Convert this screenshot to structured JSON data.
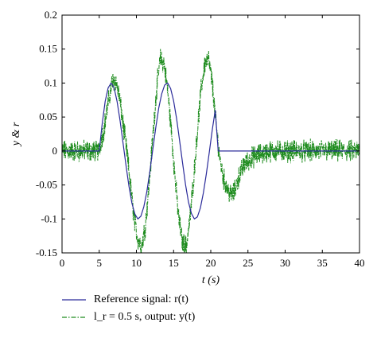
{
  "chart_data": {
    "type": "line",
    "xlabel": "t (s)",
    "ylabel": "y & r",
    "xlim": [
      0,
      40
    ],
    "ylim": [
      -0.15,
      0.2
    ],
    "xticks": [
      "0",
      "5",
      "10",
      "15",
      "20",
      "25",
      "30",
      "35",
      "40"
    ],
    "yticks": [
      "0.2",
      "0.15",
      "0.1",
      "0.05",
      "0",
      "-0.05",
      "-0.1",
      "-0.15"
    ],
    "grid": false,
    "legend_position": "bottom",
    "series": [
      {
        "name": "Reference signal: r(t)",
        "color": "#2b2b9a",
        "style": "solid",
        "x": [
          0,
          5,
          5.4,
          5.8,
          6.2,
          6.6,
          7.0,
          7.4,
          7.8,
          8.2,
          8.6,
          9.0,
          9.4,
          9.8,
          10.2,
          10.6,
          11.0,
          11.4,
          11.8,
          12.2,
          12.6,
          13.0,
          13.4,
          13.8,
          14.2,
          14.6,
          15.0,
          15.4,
          15.8,
          16.2,
          16.6,
          17.0,
          17.4,
          17.8,
          18.2,
          18.6,
          19.0,
          19.4,
          19.8,
          20.2,
          20.6,
          21.0,
          23,
          40
        ],
        "y": [
          0,
          0,
          0.04,
          0.073,
          0.093,
          0.1,
          0.093,
          0.073,
          0.045,
          0.012,
          -0.021,
          -0.052,
          -0.077,
          -0.093,
          -0.1,
          -0.096,
          -0.082,
          -0.06,
          -0.031,
          0.002,
          0.034,
          0.063,
          0.084,
          0.097,
          0.1,
          0.092,
          0.074,
          0.048,
          0.016,
          -0.017,
          -0.049,
          -0.075,
          -0.092,
          -0.1,
          -0.097,
          -0.084,
          -0.062,
          -0.034,
          -0.002,
          0.031,
          0.06,
          0,
          0,
          0
        ]
      },
      {
        "name": "l_r = 0.5 s, output: y(t)",
        "color": "#1e8c1e",
        "style": "dash-dot",
        "x": [
          0,
          4.9,
          5.6,
          6.2,
          6.7,
          7.2,
          7.7,
          8.2,
          8.7,
          9.2,
          9.7,
          10.2,
          10.7,
          11.2,
          11.7,
          12.2,
          12.7,
          13.2,
          13.7,
          14.2,
          14.7,
          15.2,
          15.7,
          16.2,
          16.7,
          17.2,
          17.7,
          18.2,
          18.7,
          19.2,
          19.7,
          20.2,
          20.7,
          21.2,
          21.7,
          22.2,
          22.7,
          23.2,
          23.7,
          24.5,
          25.5,
          26.5,
          28,
          40
        ],
        "y": [
          0,
          0,
          0.03,
          0.07,
          0.1,
          0.105,
          0.08,
          0.04,
          0.0,
          -0.05,
          -0.1,
          -0.13,
          -0.14,
          -0.11,
          -0.05,
          0.02,
          0.09,
          0.135,
          0.13,
          0.09,
          0.03,
          -0.04,
          -0.1,
          -0.135,
          -0.14,
          -0.1,
          -0.04,
          0.03,
          0.09,
          0.13,
          0.135,
          0.1,
          0.04,
          -0.01,
          -0.04,
          -0.055,
          -0.065,
          -0.06,
          -0.04,
          -0.02,
          -0.01,
          -0.005,
          0,
          0
        ]
      }
    ]
  },
  "legend": {
    "ref_label": "Reference signal: r(t)",
    "out_label": "l_r = 0.5 s, output: y(t)"
  }
}
